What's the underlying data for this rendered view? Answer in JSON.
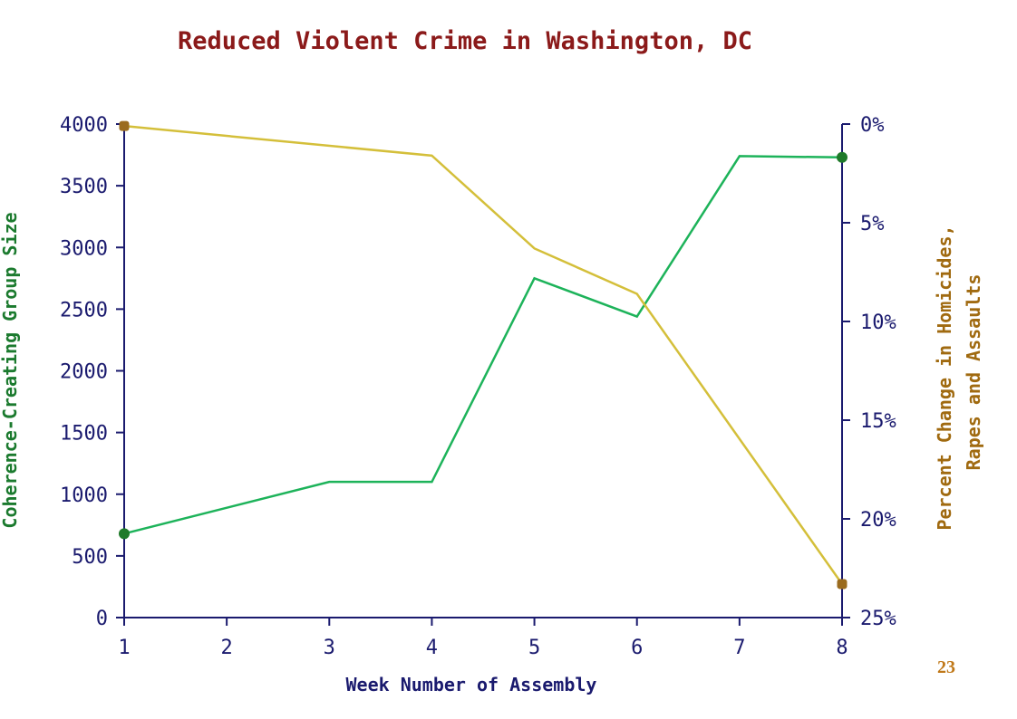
{
  "colors": {
    "title": "#8b1a1a",
    "axis": "#1a1a6e",
    "group_series": "#1db35a",
    "group_label": "#1b7a2e",
    "group_marker": "#1f7a2a",
    "crime_series": "#d4bf3a",
    "crime_label": "#a06a10",
    "crime_marker": "#9a6b1e",
    "page_number": "#c07818"
  },
  "page_number": "23",
  "chart_data": {
    "type": "line",
    "title": "Reduced Violent Crime in Washington, DC",
    "xlabel": "Week Number of Assembly",
    "ylabel_left": "Coherence-Creating Group Size",
    "ylabel_right_lines": [
      "Percent Change in Homicides,",
      "Rapes and Assaults"
    ],
    "x": [
      1,
      2,
      3,
      4,
      5,
      6,
      7,
      8
    ],
    "x_ticks": [
      "1",
      "2",
      "3",
      "4",
      "5",
      "6",
      "7",
      "8"
    ],
    "y_left_ticks": [
      "4000",
      "3500",
      "3000",
      "2500",
      "2000",
      "1500",
      "1000",
      "500",
      "0"
    ],
    "y_left_lim": [
      0,
      4000
    ],
    "y_right_ticks": [
      "0%",
      "5%",
      "10%",
      "15%",
      "20%",
      "25%"
    ],
    "y_right_lim": [
      0,
      25
    ],
    "grid": false,
    "series": [
      {
        "key": "group",
        "axis": "left",
        "x": [
          1,
          3,
          4,
          5,
          6,
          7,
          8
        ],
        "values": [
          680,
          1100,
          1100,
          2750,
          2440,
          3740,
          3730
        ],
        "markers_at": [
          1,
          8
        ]
      },
      {
        "key": "crime",
        "axis": "right",
        "x": [
          1,
          4,
          5,
          6,
          8
        ],
        "values": [
          0.1,
          1.6,
          6.3,
          8.6,
          23.3
        ],
        "markers_at": [
          1,
          8
        ]
      }
    ]
  }
}
